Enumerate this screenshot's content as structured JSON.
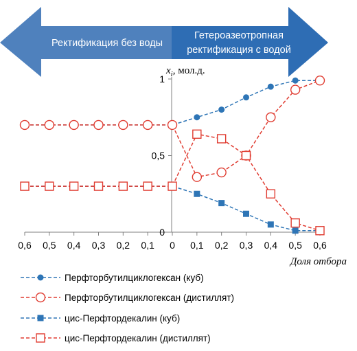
{
  "banner": {
    "left_label": "Ректификация без воды",
    "right_label_line1": "Гетероазеотропная",
    "right_label_line2": "ректификация с водой",
    "left_color": "#4f81bd",
    "right_color": "#2e6db4"
  },
  "chart_data": {
    "type": "line",
    "ylabel_var": "x",
    "ylabel_sub": "i",
    "ylabel_unit": ", мол.д.",
    "xlabel": "Доля отбора",
    "x_tick_labels": [
      "0,6",
      "0,5",
      "0,4",
      "0,3",
      "0,2",
      "0,1",
      "0",
      "0,1",
      "0,2",
      "0,3",
      "0,4",
      "0,5",
      "0,6"
    ],
    "x_positions": [
      -0.6,
      -0.5,
      -0.4,
      -0.3,
      -0.2,
      -0.1,
      0,
      0.1,
      0.2,
      0.3,
      0.4,
      0.5,
      0.6
    ],
    "y_tick_labels": [
      "0",
      "0,5",
      "1"
    ],
    "y_ticks": [
      0,
      0.5,
      1
    ],
    "xlim": [
      -0.6,
      0.6
    ],
    "ylim": [
      0,
      1
    ],
    "series": [
      {
        "name": "Перфторбутилциклогексан (куб)",
        "color": "#2e75b6",
        "marker": "filled-circle",
        "values": [
          0.7,
          0.7,
          0.7,
          0.7,
          0.7,
          0.7,
          0.7,
          0.75,
          0.8,
          0.88,
          0.95,
          0.99,
          0.99
        ]
      },
      {
        "name": "Перфторбутилциклогексан (дистиллят)",
        "color": "#e03c31",
        "marker": "open-circle",
        "values": [
          0.7,
          0.7,
          0.7,
          0.7,
          0.7,
          0.7,
          0.7,
          0.36,
          0.39,
          0.5,
          0.75,
          0.93,
          0.99
        ]
      },
      {
        "name": "цис-Перфтордекалин (куб)",
        "color": "#2e75b6",
        "marker": "filled-square",
        "values": [
          0.3,
          0.3,
          0.3,
          0.3,
          0.3,
          0.3,
          0.3,
          0.25,
          0.19,
          0.12,
          0.05,
          0.01,
          0.01
        ]
      },
      {
        "name": "цис-Перфтордекалин (дистиллят)",
        "color": "#e03c31",
        "marker": "open-square",
        "values": [
          0.3,
          0.3,
          0.3,
          0.3,
          0.3,
          0.3,
          0.3,
          0.64,
          0.61,
          0.5,
          0.25,
          0.06,
          0.01
        ]
      }
    ]
  }
}
